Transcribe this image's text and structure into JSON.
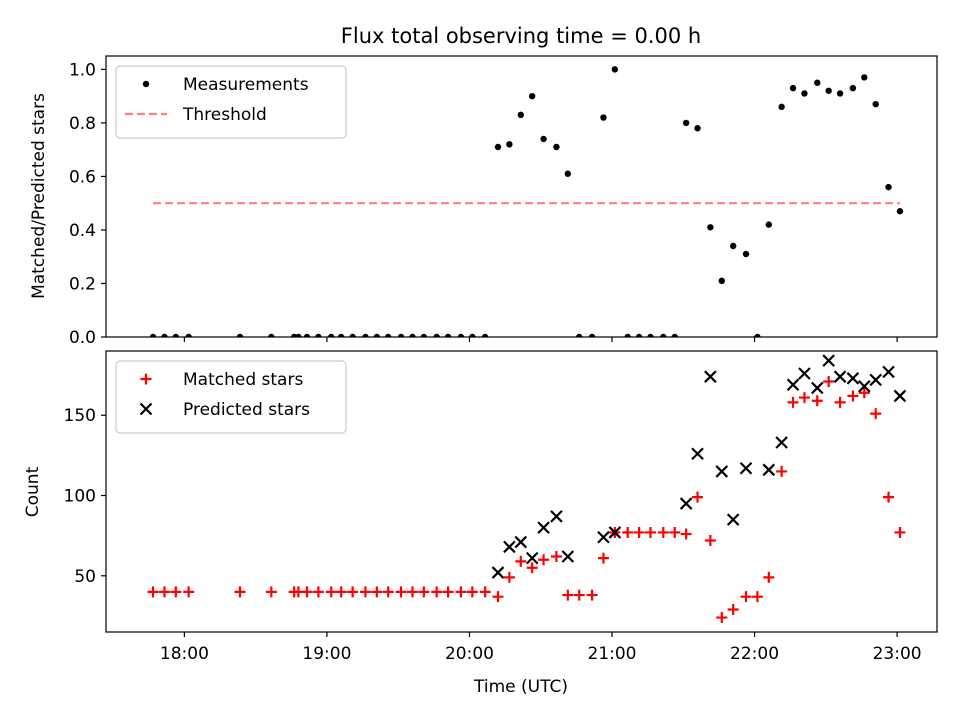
{
  "chart_data": {
    "title": "Flux total observing time = 0.00 h",
    "x_label": "Time (UTC)",
    "x_ticks": [
      "18:00",
      "19:00",
      "20:00",
      "21:00",
      "22:00",
      "23:00"
    ],
    "x_tick_hours": [
      18,
      19,
      20,
      21,
      22,
      23
    ],
    "x_range_hours": [
      17.45,
      23.28
    ],
    "panels": [
      {
        "type": "scatter",
        "ylabel": "Matched/Predicted stars",
        "ylim": [
          0,
          1.05
        ],
        "y_ticks": [
          0.0,
          0.2,
          0.4,
          0.6,
          0.8,
          1.0
        ],
        "y_tick_labels": [
          "0.0",
          "0.2",
          "0.4",
          "0.6",
          "0.8",
          "1.0"
        ],
        "legend_position": "upper left",
        "series": [
          {
            "name": "Measurements",
            "style": "dot",
            "color": "#000000",
            "x": [
              17.78,
              17.86,
              17.94,
              18.03,
              18.39,
              18.61,
              18.77,
              18.8,
              18.86,
              18.94,
              19.03,
              19.1,
              19.18,
              19.27,
              19.35,
              19.43,
              19.52,
              19.6,
              19.68,
              19.77,
              19.85,
              19.94,
              20.02,
              20.11,
              20.2,
              20.28,
              20.36,
              20.44,
              20.52,
              20.61,
              20.69,
              20.77,
              20.86,
              20.94,
              21.02,
              21.11,
              21.19,
              21.27,
              21.36,
              21.44,
              21.52,
              21.6,
              21.69,
              21.77,
              21.85,
              21.94,
              22.02,
              22.1,
              22.19,
              22.27,
              22.35,
              22.44,
              22.52,
              22.6,
              22.69,
              22.77,
              22.85,
              22.94,
              23.02
            ],
            "y": [
              0,
              0,
              0,
              0,
              0,
              0,
              0,
              0,
              0,
              0,
              0,
              0,
              0,
              0,
              0,
              0,
              0,
              0,
              0,
              0,
              0,
              0,
              0,
              0,
              0.71,
              0.72,
              0.83,
              0.9,
              0.74,
              0.71,
              0.61,
              0,
              0,
              0.82,
              1.0,
              0,
              0,
              0,
              0,
              0,
              0.8,
              0.78,
              0.41,
              0.21,
              0.34,
              0.31,
              0,
              0.42,
              0.86,
              0.93,
              0.91,
              0.95,
              0.92,
              0.91,
              0.93,
              0.97,
              0.87,
              0.56,
              0.47
            ]
          },
          {
            "name": "Threshold",
            "style": "dashed-line",
            "color": "#ff7f7f",
            "x": [
              17.78,
              23.02
            ],
            "y": [
              0.5,
              0.5
            ]
          }
        ]
      },
      {
        "type": "scatter",
        "ylabel": "Count",
        "ylim": [
          15,
          190
        ],
        "y_ticks": [
          50,
          100,
          150
        ],
        "y_tick_labels": [
          "50",
          "100",
          "150"
        ],
        "legend_position": "upper left",
        "series": [
          {
            "name": "Matched stars",
            "style": "plus",
            "color": "#ff0000",
            "x": [
              17.78,
              17.86,
              17.94,
              18.03,
              18.39,
              18.61,
              18.77,
              18.8,
              18.86,
              18.94,
              19.03,
              19.1,
              19.18,
              19.27,
              19.35,
              19.43,
              19.52,
              19.6,
              19.68,
              19.77,
              19.85,
              19.94,
              20.02,
              20.11,
              20.2,
              20.28,
              20.36,
              20.44,
              20.52,
              20.61,
              20.69,
              20.77,
              20.86,
              20.94,
              21.02,
              21.11,
              21.19,
              21.27,
              21.36,
              21.44,
              21.52,
              21.6,
              21.69,
              21.77,
              21.85,
              21.94,
              22.02,
              22.1,
              22.19,
              22.27,
              22.35,
              22.44,
              22.52,
              22.6,
              22.69,
              22.77,
              22.85,
              22.94,
              23.02
            ],
            "y": [
              40,
              40,
              40,
              40,
              40,
              40,
              40,
              40,
              40,
              40,
              40,
              40,
              40,
              40,
              40,
              40,
              40,
              40,
              40,
              40,
              40,
              40,
              40,
              40,
              37,
              49,
              59,
              55,
              60,
              62,
              38,
              38,
              38,
              61,
              77,
              77,
              77,
              77,
              77,
              77,
              76,
              99,
              72,
              24,
              29,
              37,
              37,
              49,
              115,
              158,
              161,
              159,
              171,
              158,
              162,
              164,
              151,
              99,
              77
            ]
          },
          {
            "name": "Predicted stars",
            "style": "x",
            "color": "#000000",
            "x": [
              20.2,
              20.28,
              20.36,
              20.44,
              20.52,
              20.61,
              20.69,
              20.94,
              21.02,
              21.52,
              21.6,
              21.69,
              21.77,
              21.85,
              21.94,
              22.1,
              22.19,
              22.27,
              22.35,
              22.44,
              22.52,
              22.6,
              22.69,
              22.77,
              22.85,
              22.94,
              23.02
            ],
            "y": [
              52,
              68,
              71,
              61,
              80,
              87,
              62,
              74,
              77,
              95,
              126,
              174,
              115,
              85,
              117,
              116,
              133,
              169,
              176,
              167,
              184,
              174,
              173,
              168,
              172,
              177,
              162
            ]
          }
        ]
      }
    ]
  }
}
